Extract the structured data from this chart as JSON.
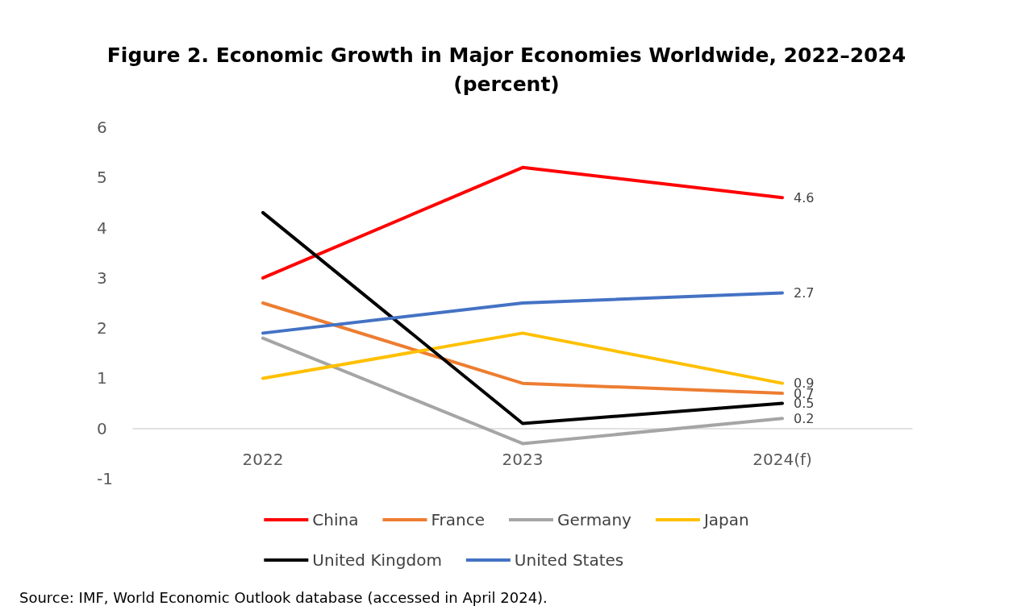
{
  "chart_data": {
    "type": "line",
    "title": "Figure 2. Economic Growth in Major Economies Worldwide, 2022–2024\n(percent)",
    "categories": [
      "2022",
      "2023",
      "2024(f)"
    ],
    "series": [
      {
        "name": "China",
        "color": "#ff0000",
        "values": [
          3.0,
          5.2,
          4.6
        ],
        "value_labels": [
          null,
          null,
          "4.6"
        ]
      },
      {
        "name": "France",
        "color": "#ed7d31",
        "values": [
          2.5,
          0.9,
          0.7
        ],
        "value_labels": [
          null,
          null,
          "0.7"
        ]
      },
      {
        "name": "Germany",
        "color": "#a5a5a5",
        "values": [
          1.8,
          -0.3,
          0.2
        ],
        "value_labels": [
          null,
          null,
          "0.2"
        ]
      },
      {
        "name": "Japan",
        "color": "#ffc000",
        "values": [
          1.0,
          1.9,
          0.9
        ],
        "value_labels": [
          null,
          null,
          "0.9"
        ]
      },
      {
        "name": "United Kingdom",
        "color": "#000000",
        "values": [
          4.3,
          0.1,
          0.5
        ],
        "value_labels": [
          null,
          null,
          "0.5"
        ]
      },
      {
        "name": "United States",
        "color": "#4472c4",
        "values": [
          1.9,
          2.5,
          2.7
        ],
        "value_labels": [
          null,
          null,
          "2.7"
        ]
      }
    ],
    "ylim": [
      -1,
      6
    ],
    "yticks": [
      -1,
      0,
      1,
      2,
      3,
      4,
      5,
      6
    ],
    "grid": false,
    "legend": "bottom",
    "marker": "none",
    "line_style": "solid",
    "annotations": [
      "Source: IMF, World Economic Outlook database (accessed in April 2024)."
    ]
  }
}
